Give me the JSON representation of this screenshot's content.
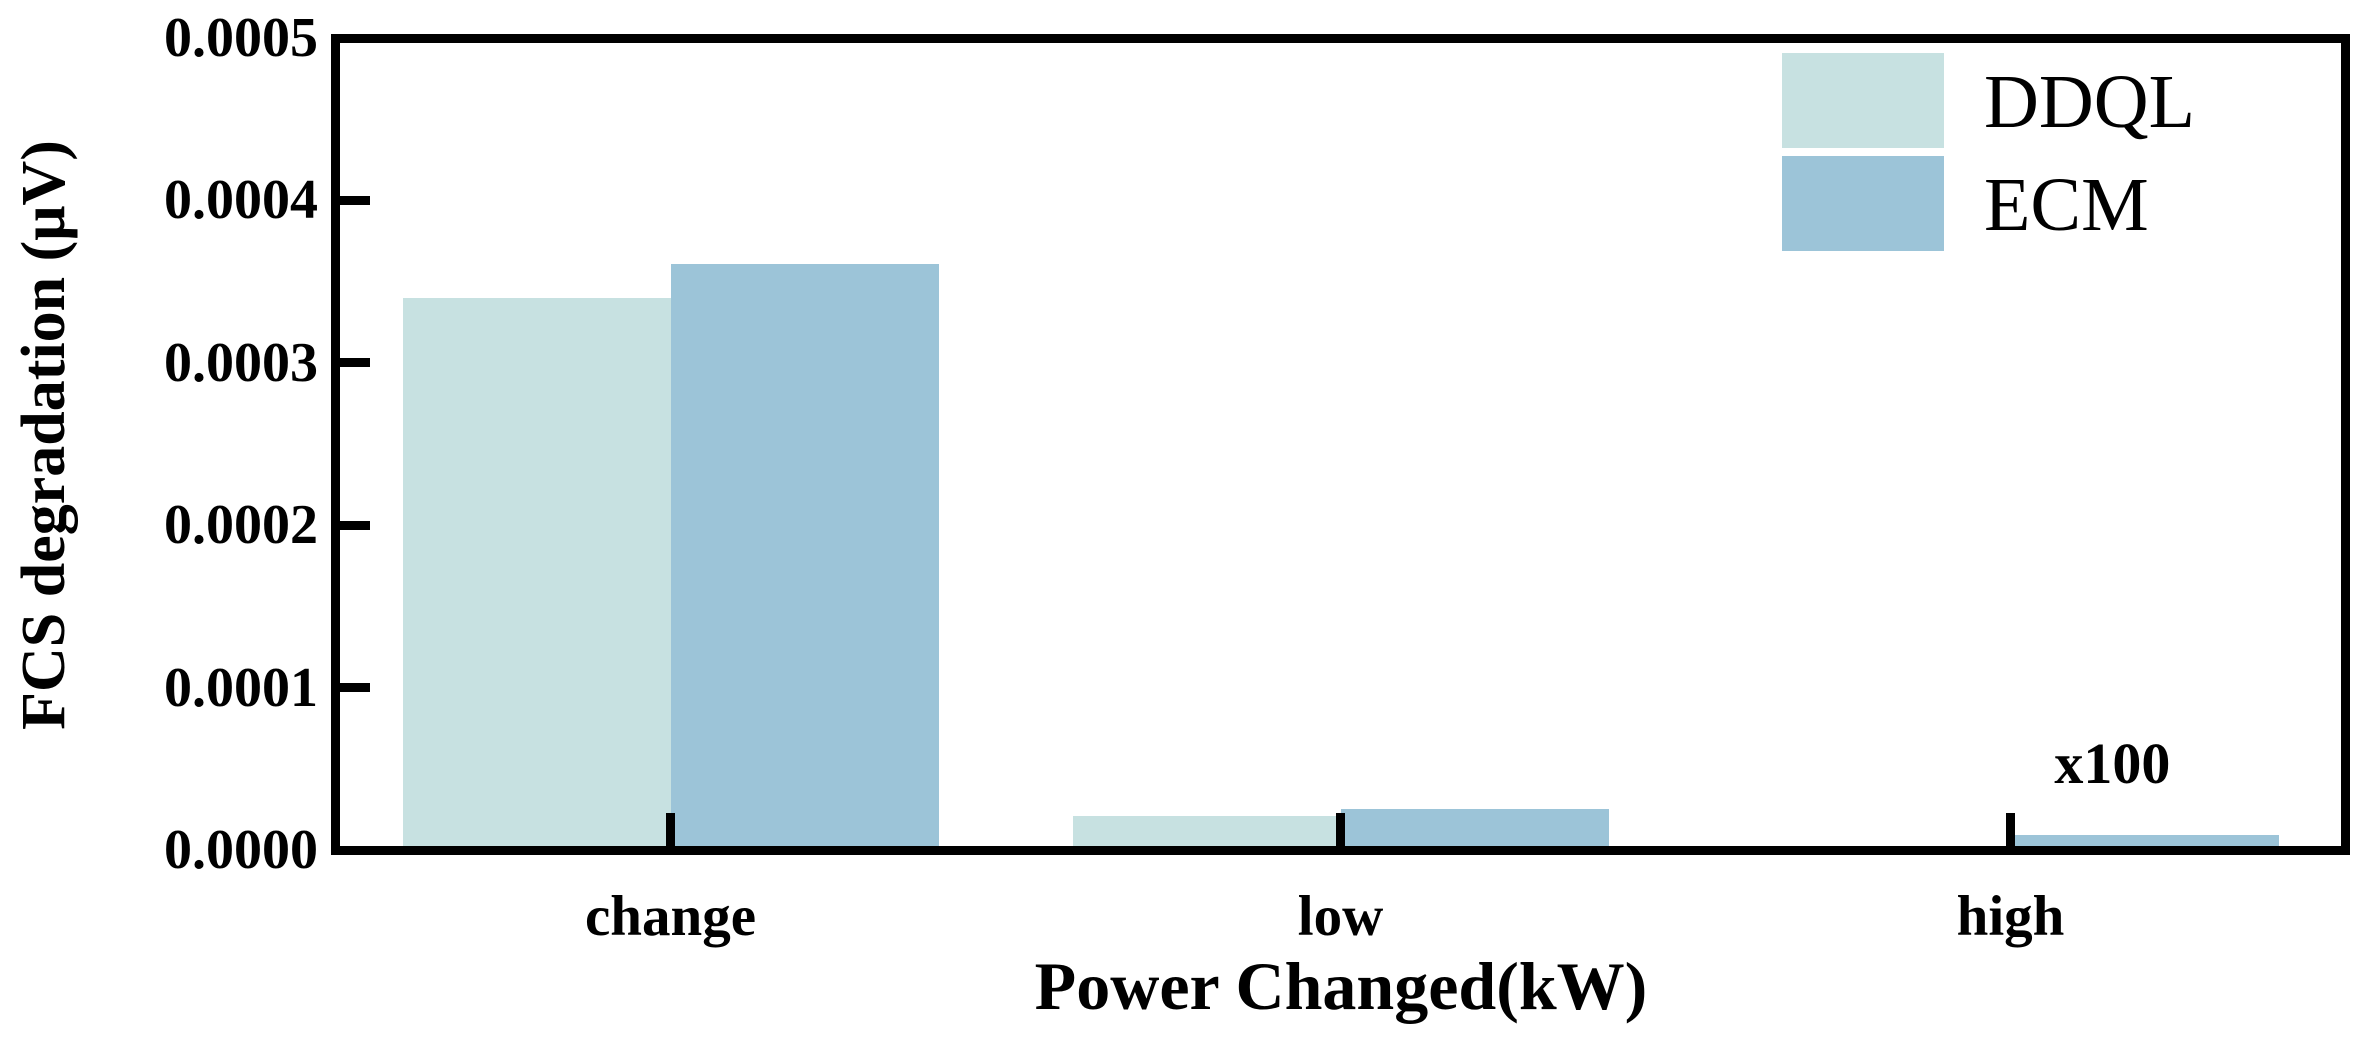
{
  "chart_data": {
    "type": "bar",
    "title": "",
    "categories": [
      "change",
      "low",
      "high"
    ],
    "series": [
      {
        "name": "DDQL",
        "color": "#c7e1e1",
        "values": [
          0.00034,
          2.1e-05,
          0
        ]
      },
      {
        "name": "ECM",
        "color": "#9cc4d8",
        "values": [
          0.000361,
          2.5e-05,
          9e-06
        ]
      }
    ],
    "xlabel": "Power Changed(kW)",
    "ylabel": "FCS degradation (μV)",
    "ylim": [
      0,
      0.0005
    ],
    "yticks": [
      "0.0000",
      "0.0001",
      "0.0002",
      "0.0003",
      "0.0004",
      "0.0005"
    ],
    "grid": false,
    "legend_position": "upper right",
    "annotation": {
      "text": "x100",
      "category": "high",
      "series": "ECM"
    }
  },
  "colors": {
    "axis": "#000000",
    "background": "#ffffff"
  }
}
